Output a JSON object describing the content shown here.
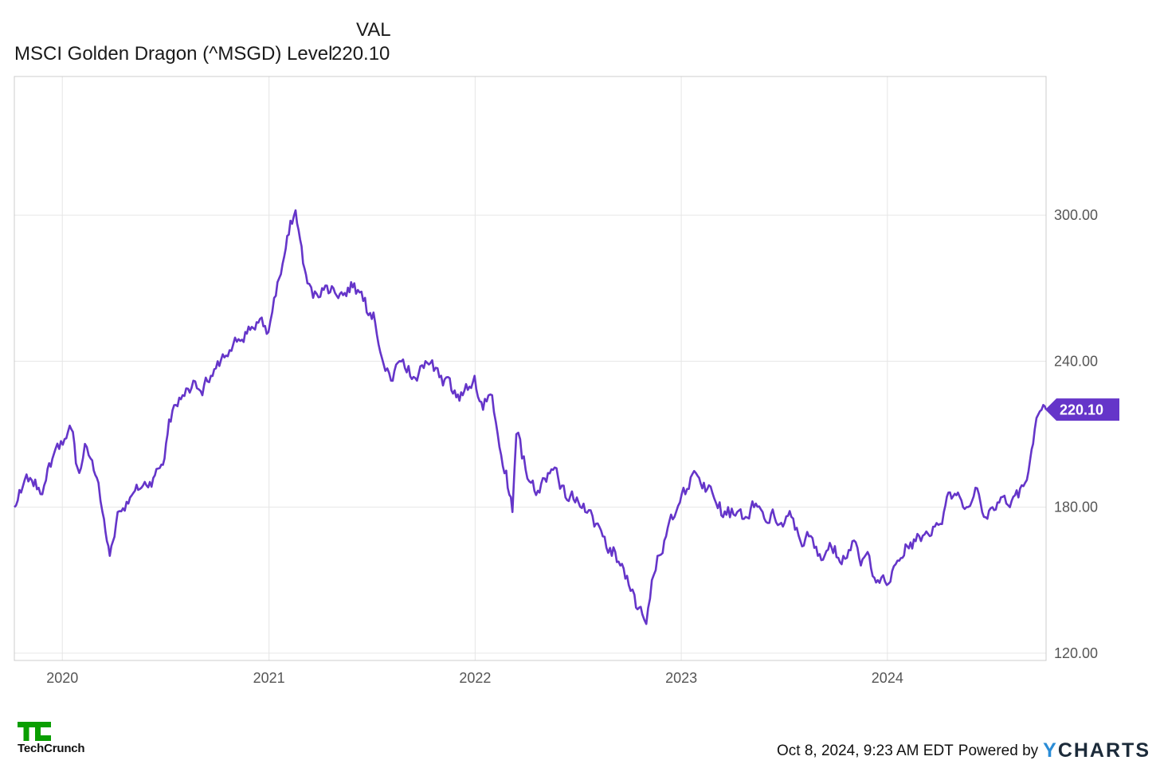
{
  "legend": {
    "column_header": "VAL",
    "series_label": "MSCI Golden Dragon (^MSGD) Level",
    "series_value": "220.10"
  },
  "colors": {
    "series": "#6535c9",
    "grid": "#e6e6e6",
    "axis": "#cccccc",
    "logo_green": "#0a9e01"
  },
  "footer": {
    "timestamp": "Oct 8, 2024, 9:23 AM EDT",
    "powered_by": "Powered by",
    "brand_initial": "Y",
    "brand_rest": "CHARTS"
  },
  "logo": {
    "mark": "TC",
    "text": "TechCrunch"
  },
  "chart_data": {
    "type": "line",
    "title": "",
    "xlabel": "",
    "ylabel": "",
    "x_tick_labels": [
      "2020",
      "2021",
      "2022",
      "2023",
      "2024"
    ],
    "y_tick_labels": [
      "120.00",
      "180.00",
      "240.00",
      "300.00"
    ],
    "y_ticks": [
      120,
      180,
      240,
      300
    ],
    "ylim": [
      117,
      357
    ],
    "xlim": [
      "2019-10-08",
      "2024-10-08"
    ],
    "x_axis_type": "date",
    "grid": true,
    "y_axis_side": "right",
    "last_value_label": "220.10",
    "series": [
      {
        "name": "MSCI Golden Dragon (^MSGD) Level",
        "x": [
          "2019-10-08",
          "2019-10-20",
          "2019-11-05",
          "2019-11-20",
          "2019-12-03",
          "2019-12-20",
          "2020-01-05",
          "2020-01-17",
          "2020-01-25",
          "2020-02-03",
          "2020-02-10",
          "2020-02-20",
          "2020-03-05",
          "2020-03-12",
          "2020-03-20",
          "2020-03-25",
          "2020-04-08",
          "2020-04-30",
          "2020-05-20",
          "2020-06-10",
          "2020-06-30",
          "2020-07-08",
          "2020-07-20",
          "2020-08-01",
          "2020-08-20",
          "2020-09-05",
          "2020-09-20",
          "2020-10-05",
          "2020-10-20",
          "2020-11-05",
          "2020-11-20",
          "2020-12-10",
          "2020-12-31",
          "2021-01-10",
          "2021-01-25",
          "2021-02-05",
          "2021-02-17",
          "2021-02-25",
          "2021-03-05",
          "2021-03-10",
          "2021-03-20",
          "2021-04-05",
          "2021-04-25",
          "2021-05-15",
          "2021-06-01",
          "2021-06-20",
          "2021-07-05",
          "2021-07-26",
          "2021-08-05",
          "2021-08-20",
          "2021-09-05",
          "2021-09-20",
          "2021-10-05",
          "2021-10-20",
          "2021-11-05",
          "2021-11-20",
          "2021-12-10",
          "2021-12-31",
          "2022-01-15",
          "2022-01-31",
          "2022-02-10",
          "2022-02-25",
          "2022-03-08",
          "2022-03-15",
          "2022-03-25",
          "2022-04-10",
          "2022-04-25",
          "2022-05-10",
          "2022-05-25",
          "2022-06-10",
          "2022-06-30",
          "2022-07-15",
          "2022-07-31",
          "2022-08-15",
          "2022-08-31",
          "2022-09-15",
          "2022-09-30",
          "2022-10-10",
          "2022-10-24",
          "2022-10-31",
          "2022-11-10",
          "2022-11-20",
          "2022-12-05",
          "2022-12-20",
          "2023-01-05",
          "2023-01-27",
          "2023-02-10",
          "2023-02-25",
          "2023-03-10",
          "2023-03-25",
          "2023-04-10",
          "2023-04-25",
          "2023-05-10",
          "2023-05-31",
          "2023-06-15",
          "2023-06-30",
          "2023-07-15",
          "2023-07-31",
          "2023-08-15",
          "2023-08-31",
          "2023-09-15",
          "2023-09-30",
          "2023-10-15",
          "2023-10-31",
          "2023-11-15",
          "2023-11-30",
          "2023-12-15",
          "2023-12-31",
          "2024-01-22",
          "2024-02-05",
          "2024-02-20",
          "2024-03-10",
          "2024-03-25",
          "2024-04-10",
          "2024-04-18",
          "2024-05-05",
          "2024-05-20",
          "2024-06-05",
          "2024-06-20",
          "2024-07-05",
          "2024-07-20",
          "2024-08-05",
          "2024-08-20",
          "2024-09-10",
          "2024-09-15",
          "2024-09-24",
          "2024-09-30",
          "2024-10-03",
          "2024-10-08"
        ],
        "values": [
          180,
          186,
          192,
          188,
          191,
          204,
          208,
          212,
          198,
          196,
          206,
          200,
          190,
          178,
          166,
          160,
          178,
          184,
          188,
          192,
          200,
          216,
          222,
          226,
          232,
          226,
          234,
          238,
          242,
          248,
          252,
          256,
          252,
          266,
          280,
          292,
          302,
          290,
          278,
          272,
          266,
          270,
          270,
          268,
          272,
          266,
          260,
          236,
          232,
          240,
          238,
          232,
          240,
          236,
          230,
          228,
          226,
          234,
          220,
          226,
          210,
          195,
          178,
          210,
          200,
          190,
          186,
          194,
          196,
          184,
          184,
          178,
          172,
          168,
          160,
          156,
          148,
          144,
          136,
          132,
          150,
          160,
          168,
          176,
          188,
          194,
          190,
          186,
          182,
          180,
          178,
          176,
          180,
          174,
          176,
          172,
          176,
          166,
          168,
          160,
          162,
          164,
          160,
          166,
          156,
          160,
          150,
          148,
          158,
          164,
          166,
          170,
          172,
          178,
          186,
          186,
          180,
          188,
          176,
          180,
          184,
          180,
          184,
          200,
          206,
          218,
          220,
          222,
          220.1
        ]
      }
    ]
  }
}
